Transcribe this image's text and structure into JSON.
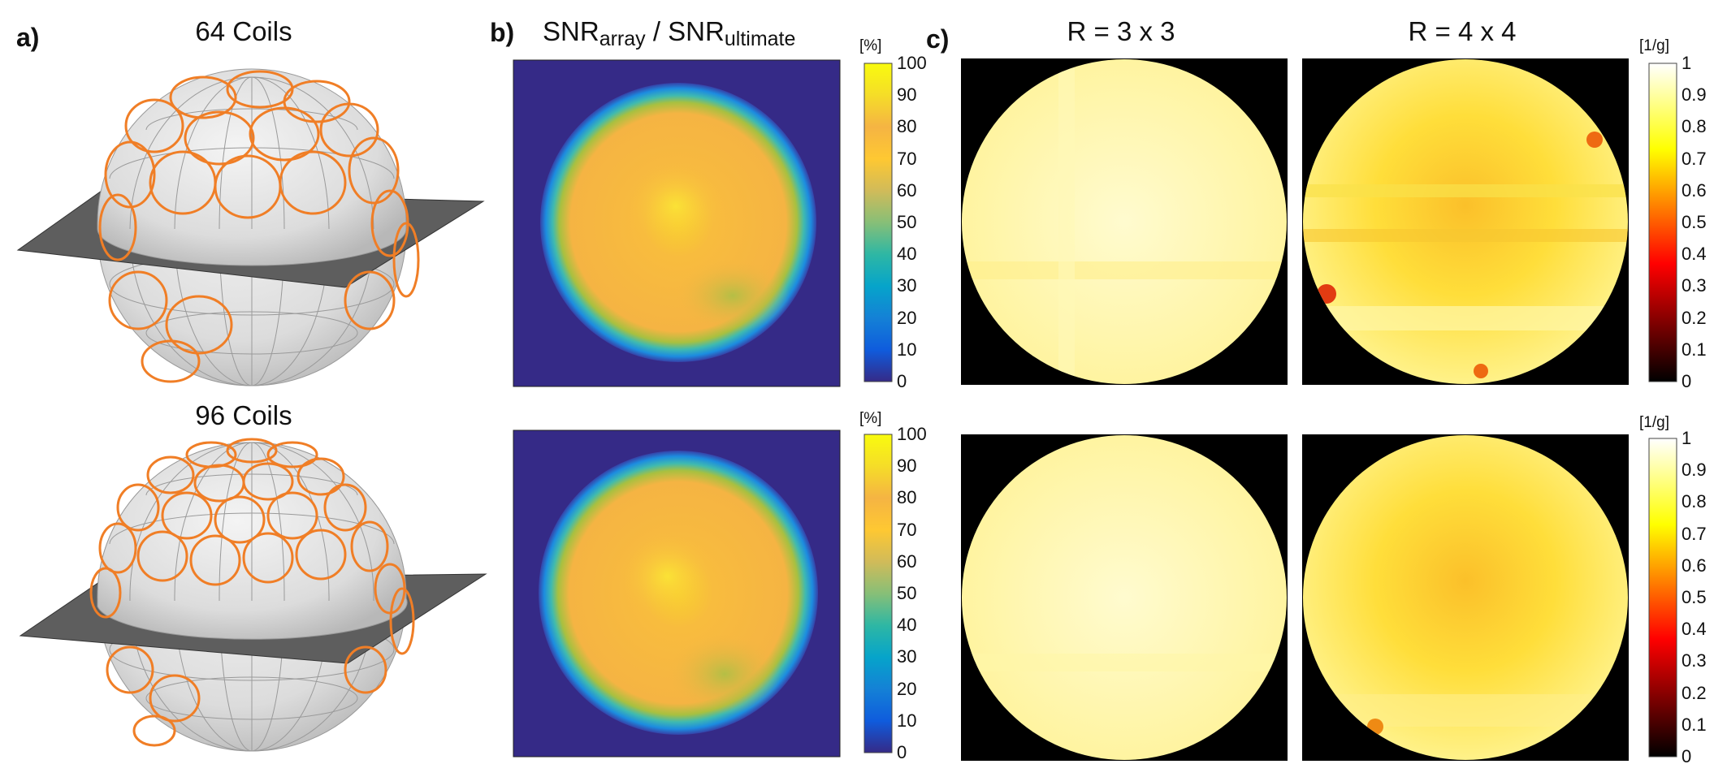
{
  "panel_a": {
    "letter": "a)",
    "titles": [
      "64 Coils",
      "96 Coils"
    ]
  },
  "panel_b": {
    "letter": "b)",
    "title": {
      "part1": "SNR",
      "sub1": "array",
      "sep": " / ",
      "part2": "SNR",
      "sub2": "ultimate"
    },
    "colorbar_unit": "[%]",
    "colorbar_ticks": [
      "100",
      "90",
      "80",
      "70",
      "60",
      "50",
      "40",
      "30",
      "20",
      "10",
      "0"
    ],
    "colors": {
      "low": "#352a87",
      "mid": "#0d9ecf",
      "high": "#f9fb0e",
      "body": "#f8ba3e"
    }
  },
  "panel_c": {
    "letter": "c)",
    "col_titles": [
      "R = 3 x 3",
      "R = 4 x 4"
    ],
    "colorbar_unit": "[1/g]",
    "colorbar_ticks": [
      "1",
      "0.9",
      "0.8",
      "0.7",
      "0.6",
      "0.5",
      "0.4",
      "0.3",
      "0.2",
      "0.1",
      "0"
    ],
    "colors": {
      "top": "#ffffff",
      "yellow": "#ffff00",
      "red": "#ff0000",
      "bottom": "#000000"
    }
  },
  "chart_data": [
    {
      "type": "heatmap",
      "title": "SNRarray / SNRultimate",
      "rows": [
        "64 Coils",
        "96 Coils"
      ],
      "colorbar_label": "[%]",
      "zlim": [
        0,
        100
      ]
    },
    {
      "type": "heatmap",
      "title": "1/g",
      "columns": [
        "R = 3 x 3",
        "R = 4 x 4"
      ],
      "rows": [
        "64 Coils",
        "96 Coils"
      ],
      "colorbar_label": "[1/g]",
      "zlim": [
        0,
        1
      ]
    }
  ]
}
